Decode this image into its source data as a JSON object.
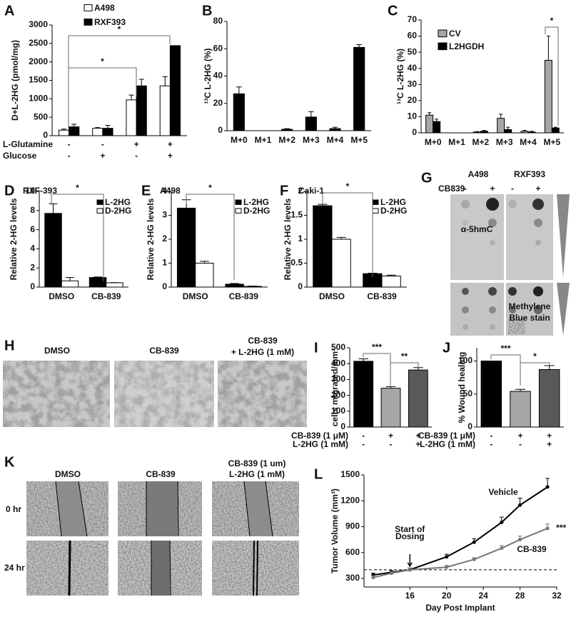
{
  "chart_data": [
    {
      "panel": "A",
      "type": "bar",
      "ylabel": "D+L-2HG (pmol/mg)",
      "categories": [
        null,
        null,
        null,
        null
      ],
      "series": [
        {
          "name": "A498",
          "color": "#ffffff",
          "values": [
            150,
            200,
            970,
            1350
          ],
          "errors": [
            30,
            20,
            130,
            250
          ]
        },
        {
          "name": "RXF393",
          "color": "#000000",
          "values": [
            240,
            200,
            1350,
            2440
          ],
          "errors": [
            70,
            80,
            180,
            0
          ]
        }
      ],
      "conditions": [
        {
          "name": "L-Glutamine",
          "values": [
            "-",
            "-",
            "+",
            "+"
          ]
        },
        {
          "name": "Glucose",
          "values": [
            "-",
            "+",
            "-",
            "+"
          ]
        }
      ],
      "annotations": [
        "*",
        "*"
      ],
      "ylim": [
        0,
        3000
      ],
      "yticks": [
        0,
        500,
        1000,
        1500,
        2000,
        2500,
        3000
      ]
    },
    {
      "panel": "B",
      "type": "bar",
      "ylabel": "¹³C L-2HG (%)",
      "categories": [
        "M+0",
        "M+1",
        "M+2",
        "M+3",
        "M+4",
        "M+5"
      ],
      "series": [
        {
          "color": "#000000",
          "values": [
            27,
            0,
            1,
            10,
            1.5,
            61
          ],
          "errors": [
            5,
            0,
            0.5,
            4,
            1,
            2
          ]
        }
      ],
      "ylim": [
        0,
        80
      ],
      "yticks": [
        0,
        20,
        40,
        60,
        80
      ]
    },
    {
      "panel": "C",
      "type": "bar",
      "ylabel": "¹³C L-2HG (%)",
      "categories": [
        "M+0",
        "M+1",
        "M+2",
        "M+3",
        "M+4",
        "M+5"
      ],
      "series": [
        {
          "name": "CV",
          "color": "#a6a6a6",
          "values": [
            11,
            0,
            0.5,
            9,
            1,
            45
          ],
          "errors": [
            1.5,
            0,
            0.3,
            2.5,
            0.5,
            15
          ]
        },
        {
          "name": "L2HGDH",
          "color": "#000000",
          "values": [
            7,
            0,
            1,
            2,
            0.5,
            3
          ],
          "errors": [
            1.5,
            0,
            0.5,
            1.5,
            0.5,
            0.5
          ]
        }
      ],
      "annotations": [
        "*"
      ],
      "ylim": [
        0,
        70
      ],
      "yticks": [
        0,
        10,
        20,
        30,
        40,
        50,
        60,
        70
      ]
    },
    {
      "panel": "D",
      "type": "bar",
      "title": "RXF-393",
      "ylabel": "Relative 2-HG levels",
      "categories": [
        "DMSO",
        "CB-839"
      ],
      "series": [
        {
          "name": "L-2HG",
          "color": "#000000",
          "values": [
            7.7,
            1.0
          ],
          "errors": [
            1.0,
            0.05
          ]
        },
        {
          "name": "D-2HG",
          "color": "#ffffff",
          "values": [
            0.65,
            0.45
          ],
          "errors": [
            0.35,
            0.02
          ]
        }
      ],
      "annotations": [
        "*"
      ],
      "ylim": [
        0,
        10
      ],
      "yticks": [
        0,
        2,
        4,
        6,
        8,
        10
      ]
    },
    {
      "panel": "E",
      "type": "bar",
      "title": "A498",
      "ylabel": "Relative 2-HG levels",
      "categories": [
        "DMSO",
        "CB-839"
      ],
      "series": [
        {
          "name": "L-2HG",
          "color": "#000000",
          "values": [
            3.3,
            0.12
          ],
          "errors": [
            0.35,
            0.03
          ]
        },
        {
          "name": "D-2HG",
          "color": "#ffffff",
          "values": [
            1.0,
            0.03
          ],
          "errors": [
            0.08,
            0.01
          ]
        }
      ],
      "annotations": [
        "*"
      ],
      "ylim": [
        0,
        4
      ],
      "yticks": [
        0,
        1,
        2,
        3,
        4
      ]
    },
    {
      "panel": "F",
      "type": "bar",
      "title": "Caki-1",
      "ylabel": "Relative 2-HG levels",
      "categories": [
        "DMSO",
        "CB-839"
      ],
      "series": [
        {
          "name": "L-2HG",
          "color": "#000000",
          "values": [
            1.7,
            0.28
          ],
          "errors": [
            0.03,
            0.01
          ]
        },
        {
          "name": "D-2HG",
          "color": "#ffffff",
          "values": [
            1.0,
            0.23
          ],
          "errors": [
            0.04,
            0.02
          ]
        }
      ],
      "annotations": [
        "*"
      ],
      "ylim": [
        0,
        2
      ],
      "yticks": [
        0,
        0.5,
        1,
        1.5,
        2
      ]
    },
    {
      "panel": "I",
      "type": "bar",
      "ylabel": "cells migrated/mm²",
      "categories": [
        null,
        null,
        null
      ],
      "values": [
        415,
        245,
        360
      ],
      "errors": [
        15,
        10,
        15
      ],
      "colors": [
        "#000000",
        "#a6a6a6",
        "#595959"
      ],
      "conditions": [
        {
          "name": "CB-839 (1 μM)",
          "values": [
            "-",
            "+",
            "+"
          ]
        },
        {
          "name": "L-2HG (1 mM)",
          "values": [
            "-",
            "-",
            "+"
          ]
        }
      ],
      "annotations": [
        "***",
        "**"
      ],
      "ylim": [
        0,
        500
      ],
      "yticks": [
        0,
        100,
        200,
        300,
        400,
        500
      ]
    },
    {
      "panel": "J",
      "type": "bar",
      "ylabel": "% Wound healing",
      "categories": [
        null,
        null,
        null
      ],
      "values": [
        100,
        54,
        87
      ],
      "errors": [
        0,
        3,
        6
      ],
      "colors": [
        "#000000",
        "#a6a6a6",
        "#595959"
      ],
      "conditions": [
        {
          "name": "CB-839 (1 μM)",
          "values": [
            "-",
            "+",
            "+"
          ]
        },
        {
          "name": "L-2HG (1 mM)",
          "values": [
            "-",
            "-",
            "+"
          ]
        }
      ],
      "annotations": [
        "***",
        "*"
      ],
      "ylim": [
        0,
        120
      ],
      "yticks": [
        0,
        50,
        100
      ]
    },
    {
      "panel": "L",
      "type": "line",
      "xlabel": "Day Post Implant",
      "ylabel": "Tumor Volume (mm³)",
      "series": [
        {
          "name": "Vehicle",
          "color": "#000000",
          "x": [
            12,
            14,
            16,
            20,
            23,
            26,
            28,
            31
          ],
          "values": [
            340,
            370,
            400,
            550,
            720,
            950,
            1150,
            1360
          ],
          "errors": [
            20,
            20,
            20,
            30,
            40,
            60,
            80,
            100
          ]
        },
        {
          "name": "CB-839",
          "color": "#777777",
          "x": [
            12,
            14,
            16,
            20,
            23,
            26,
            28,
            31
          ],
          "values": [
            310,
            360,
            400,
            430,
            520,
            650,
            750,
            880
          ],
          "errors": [
            20,
            20,
            20,
            20,
            20,
            30,
            40,
            50
          ]
        }
      ],
      "reference_line": 400,
      "dosing_day": 16,
      "dosing_label": [
        "Start of",
        "Dosing"
      ],
      "significance": "***",
      "xlim": [
        11,
        32
      ],
      "xticks": [
        16,
        20,
        24,
        28,
        32
      ],
      "ylim": [
        200,
        1500
      ],
      "yticks": [
        300,
        600,
        900,
        1200,
        1500
      ]
    }
  ],
  "figure_panels": {
    "G": {
      "panel": "G",
      "treatment": "CB839",
      "columns": [
        "A498",
        "RXF393"
      ],
      "signs": [
        "-",
        "+",
        "-",
        "+"
      ],
      "rows": [
        [
          "α-5hmC"
        ],
        [
          "Methylene",
          "Blue stain"
        ]
      ]
    },
    "H": {
      "panel": "H",
      "columns": [
        [
          "DMSO"
        ],
        [
          "CB-839"
        ],
        [
          "CB-839",
          "+ L-2HG (1 mM)"
        ]
      ]
    },
    "K": {
      "panel": "K",
      "columns": [
        [
          "DMSO"
        ],
        [
          "CB-839"
        ],
        [
          "CB-839 (1 um)",
          "L-2HG (1 mM)"
        ]
      ],
      "rows": [
        "0 hr",
        "24 hr"
      ]
    }
  }
}
